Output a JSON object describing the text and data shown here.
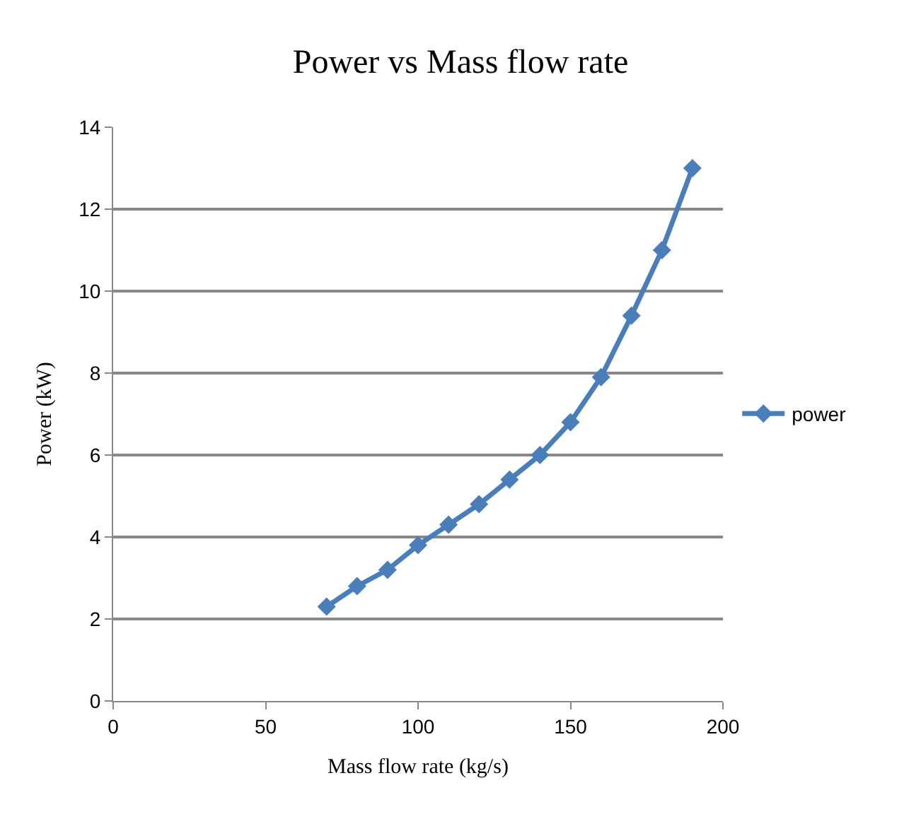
{
  "chart_data": {
    "type": "line",
    "title": "Power vs Mass flow rate",
    "xlabel": "Mass flow rate (kg/s)",
    "ylabel": "Power (kW)",
    "x": [
      70,
      80,
      90,
      100,
      110,
      120,
      130,
      140,
      150,
      160,
      170,
      180,
      190
    ],
    "series": [
      {
        "name": "power",
        "color": "#4a7ebb",
        "values": [
          2.3,
          2.8,
          3.2,
          3.8,
          4.3,
          4.8,
          5.4,
          6.0,
          6.8,
          7.9,
          9.4,
          11.0,
          13.0
        ]
      }
    ],
    "xlim": [
      0,
      200
    ],
    "xticks": [
      0,
      50,
      100,
      150,
      200
    ],
    "ylim": [
      0,
      14
    ],
    "yticks": [
      0,
      2,
      4,
      6,
      8,
      10,
      12,
      14
    ],
    "grid": "y",
    "legend": "right",
    "marker": "diamond",
    "line_style": "solid"
  }
}
